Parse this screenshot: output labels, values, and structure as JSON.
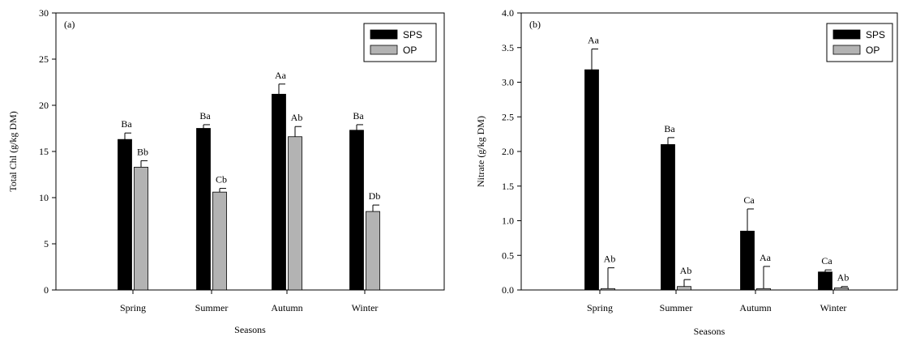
{
  "chart_data": [
    {
      "type": "bar",
      "panel_label": "(a)",
      "title": "",
      "xlabel": "Seasons",
      "ylabel": "Total Chl  (g/kg DM)",
      "ylim": [
        0,
        30
      ],
      "yticks": [
        0,
        5,
        10,
        15,
        20,
        25,
        30
      ],
      "ytick_labels": [
        "0",
        "5",
        "10",
        "15",
        "20",
        "25",
        "30"
      ],
      "categories": [
        "Spring",
        "Summer",
        "Autumn",
        "Winter"
      ],
      "legend_position": "top-right",
      "grid": false,
      "series": [
        {
          "name": "SPS",
          "color": "#000000",
          "values": [
            16.3,
            17.5,
            21.2,
            17.3
          ],
          "errors": [
            0.7,
            0.4,
            1.1,
            0.6
          ],
          "labels": [
            "Ba",
            "Ba",
            "Aa",
            "Ba"
          ]
        },
        {
          "name": "OP",
          "color": "#b3b3b3",
          "values": [
            13.3,
            10.6,
            16.6,
            8.5
          ],
          "errors": [
            0.7,
            0.4,
            1.1,
            0.7
          ],
          "labels": [
            "Bb",
            "Cb",
            "Ab",
            "Db"
          ]
        }
      ]
    },
    {
      "type": "bar",
      "panel_label": "(b)",
      "title": "",
      "xlabel": "Seasons",
      "ylabel": "Nitrate (g/kg DM)",
      "ylim": [
        0,
        4.0
      ],
      "yticks": [
        0,
        0.5,
        1.0,
        1.5,
        2.0,
        2.5,
        3.0,
        3.5,
        4.0
      ],
      "ytick_labels": [
        "0.0",
        "0.5",
        "1.0",
        "1.5",
        "2.0",
        "2.5",
        "3.0",
        "3.5",
        "4.0"
      ],
      "categories": [
        "Spring",
        "Summer",
        "Autumn",
        "Winter"
      ],
      "legend_position": "top-right",
      "grid": false,
      "series": [
        {
          "name": "SPS",
          "color": "#000000",
          "values": [
            3.18,
            2.1,
            0.85,
            0.26
          ],
          "errors": [
            0.3,
            0.1,
            0.32,
            0.03
          ],
          "labels": [
            "Aa",
            "Ba",
            "Ca",
            "Ca"
          ]
        },
        {
          "name": "OP",
          "color": "#b3b3b3",
          "values": [
            0.02,
            0.05,
            0.02,
            0.03
          ],
          "errors": [
            0.3,
            0.1,
            0.32,
            0.02
          ],
          "labels": [
            "Ab",
            "Ab",
            "Aa",
            "Ab"
          ]
        }
      ]
    }
  ]
}
